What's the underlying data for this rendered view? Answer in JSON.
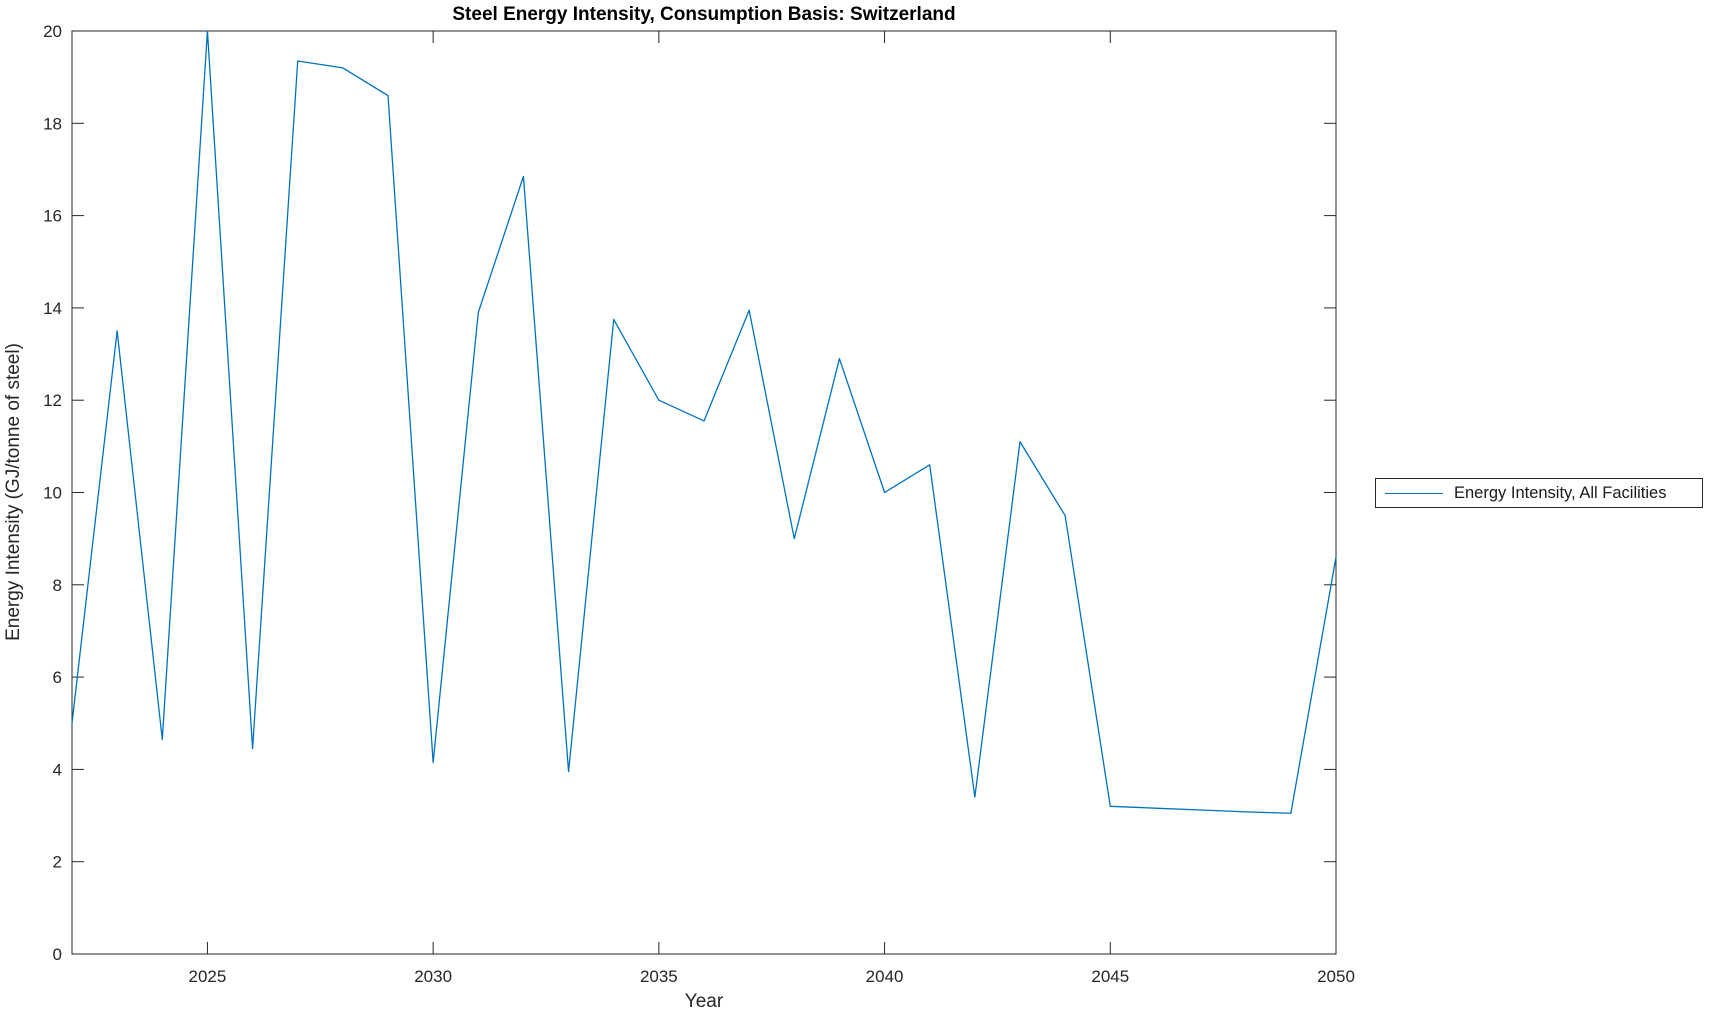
{
  "figure": {
    "title": "Steel Energy Intensity, Consumption Basis: Switzerland",
    "xlabel": "Year",
    "ylabel": "Energy Intensity (GJ/tonne of steel)",
    "legend": {
      "entries": [
        {
          "label": "Energy Intensity, All Facilities",
          "color": "#0072BD"
        }
      ],
      "position": "right-center-outside",
      "border_color": "#262626"
    },
    "colors": {
      "line": "#0072BD",
      "axis": "#262626",
      "background": "#ffffff"
    }
  },
  "chart_data": {
    "type": "line",
    "title": "Steel Energy Intensity, Consumption Basis: Switzerland",
    "xlabel": "Year",
    "ylabel": "Energy Intensity (GJ/tonne of steel)",
    "x": [
      2022,
      2023,
      2024,
      2025,
      2026,
      2027,
      2028,
      2029,
      2030,
      2031,
      2032,
      2033,
      2034,
      2035,
      2036,
      2037,
      2038,
      2039,
      2040,
      2041,
      2042,
      2043,
      2044,
      2045,
      2046,
      2047,
      2048,
      2049,
      2050
    ],
    "series": [
      {
        "name": "Energy Intensity, All Facilities",
        "color": "#0072BD",
        "values": [
          5.0,
          13.5,
          4.65,
          20.0,
          4.45,
          19.35,
          19.2,
          18.6,
          4.15,
          13.9,
          16.85,
          3.95,
          13.75,
          12.0,
          11.55,
          13.95,
          9.0,
          12.9,
          10.0,
          10.6,
          3.4,
          11.1,
          9.5,
          3.2,
          3.16,
          3.12,
          3.08,
          3.05,
          8.6
        ]
      }
    ],
    "xlim": [
      2022,
      2050
    ],
    "ylim": [
      0,
      20
    ],
    "xticks": [
      2025,
      2030,
      2035,
      2040,
      2045,
      2050
    ],
    "yticks": [
      0,
      2,
      4,
      6,
      8,
      10,
      12,
      14,
      16,
      18,
      20
    ],
    "grid": false,
    "legend_position": "right-center-outside"
  }
}
